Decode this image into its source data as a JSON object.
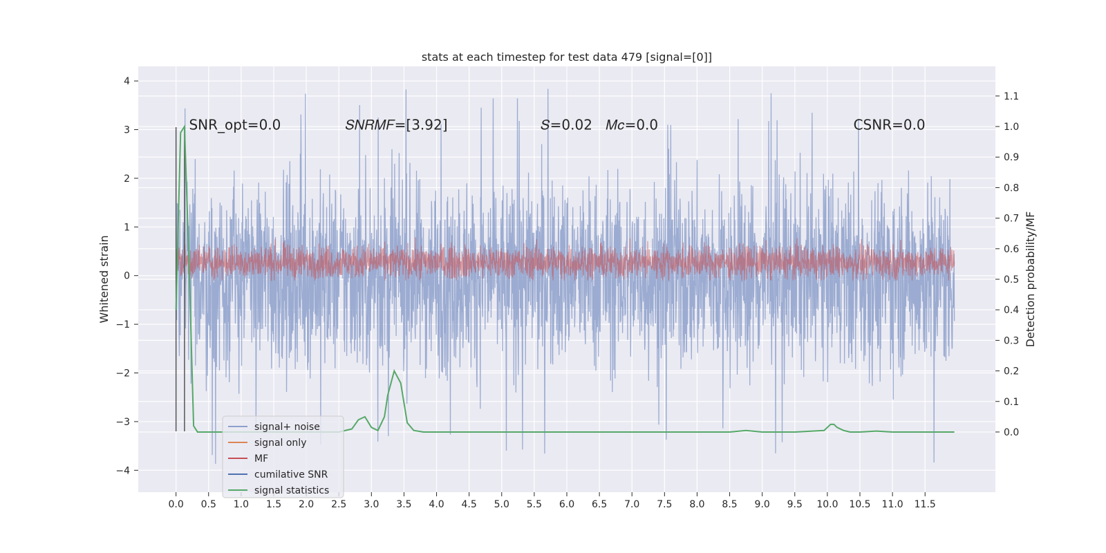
{
  "chart_data": {
    "type": "line",
    "title": "stats at each timestep for test data 479 [signal=[0]]",
    "xlabel": "",
    "ylabel": "Whitened strain",
    "y2label": "Detection probability/MF",
    "xlim": [
      -0.58,
      12.58
    ],
    "ylim": [
      -4.45,
      4.3
    ],
    "y2lim": [
      -0.197,
      1.197
    ],
    "xticks": [
      0.0,
      0.5,
      1.0,
      1.5,
      2.0,
      2.5,
      3.0,
      3.5,
      4.0,
      4.5,
      5.0,
      5.5,
      6.0,
      6.5,
      7.0,
      7.5,
      8.0,
      8.5,
      9.0,
      9.5,
      10.0,
      10.5,
      11.0,
      11.5
    ],
    "yticks": [
      -4,
      -3,
      -2,
      -1,
      0,
      1,
      2,
      3,
      4
    ],
    "y2ticks": [
      0.0,
      0.1,
      0.2,
      0.3,
      0.4,
      0.5,
      0.6,
      0.7,
      0.8,
      0.9,
      1.0,
      1.1
    ],
    "grid": true,
    "legend_placement": "lower left",
    "annotations": [
      {
        "text": "SNR_opt=0.0",
        "x": 0.2,
        "y": 3.1
      },
      {
        "text": "𝑆𝑁𝑅𝑀𝐹=[3.92]",
        "x": 2.6,
        "y": 3.1
      },
      {
        "text": "𝑆=0.02",
        "x": 5.6,
        "y": 3.1
      },
      {
        "text": "𝑀𝑐=0.0",
        "x": 6.6,
        "y": 3.1
      },
      {
        "text": "CSNR=0.0",
        "x": 10.4,
        "y": 3.1
      }
    ],
    "series": [
      {
        "name": "signal+ noise",
        "color": "#8da0cb",
        "axis": "left",
        "description": "noise-like, roughly -2.6 to 2.8 with spikes to ±3.9, t=0..12"
      },
      {
        "name": "signal only",
        "color": "#dd8452",
        "axis": "left",
        "values_summary": "≈0"
      },
      {
        "name": "MF",
        "color": "#c44e52",
        "axis": "left",
        "description": "noise-like, roughly -0.05 to 0.8, t=0..12"
      },
      {
        "name": "cumilative SNR",
        "color": "#4c72b0",
        "axis": "left",
        "values_summary": "≈0"
      },
      {
        "name": "signal statistics",
        "color": "#55a868",
        "axis": "right",
        "x": [
          0.0,
          0.07,
          0.13,
          0.2,
          0.27,
          0.33,
          0.5,
          0.8,
          1.0,
          1.5,
          2.0,
          2.5,
          2.6,
          2.7,
          2.8,
          2.9,
          3.0,
          3.1,
          3.2,
          3.25,
          3.35,
          3.45,
          3.55,
          3.65,
          3.8,
          4.0,
          5.0,
          6.0,
          7.0,
          8.0,
          8.5,
          8.75,
          9.0,
          9.5,
          9.95,
          10.0,
          10.05,
          10.1,
          10.15,
          10.25,
          10.35,
          10.5,
          10.75,
          11.0,
          11.5,
          11.95
        ],
        "y": [
          0.4,
          0.98,
          1.0,
          0.55,
          0.02,
          0.0,
          0.0,
          0.0,
          0.0,
          0.0,
          0.0,
          0.0,
          0.005,
          0.01,
          0.04,
          0.05,
          0.015,
          0.005,
          0.05,
          0.12,
          0.2,
          0.16,
          0.03,
          0.005,
          0.0,
          0.0,
          0.0,
          0.0,
          0.0,
          0.0,
          0.0,
          0.005,
          0.0,
          0.0,
          0.005,
          0.015,
          0.025,
          0.025,
          0.015,
          0.005,
          0.0,
          0.0,
          0.003,
          0.0,
          0.0,
          0.0
        ]
      }
    ],
    "vertical_markers": [
      {
        "x": 0.0,
        "y_from": -3.2,
        "y_to": 3.05,
        "color": "#555555"
      },
      {
        "x": 0.13,
        "y_from": -3.2,
        "y_to": 3.05,
        "color": "#555555"
      }
    ]
  }
}
